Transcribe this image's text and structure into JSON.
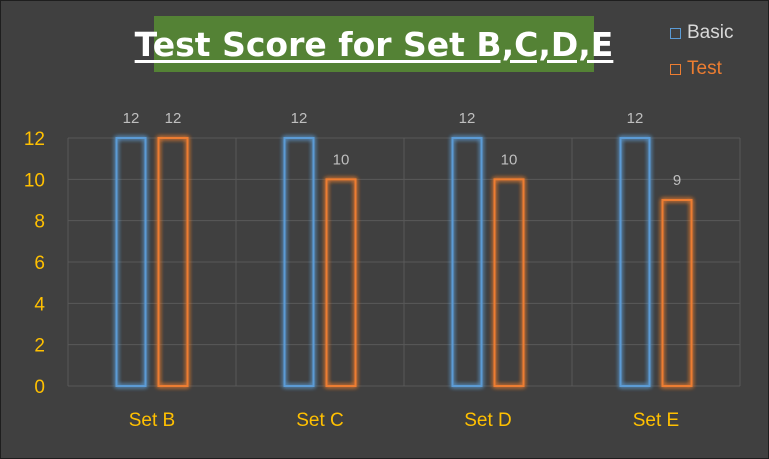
{
  "colors": {
    "background": "#404040",
    "title_bg": "#548235",
    "title_text": "#ffffff",
    "axis_text": "#ffc000",
    "grid": "#595959",
    "data_label": "#bfbfbf",
    "legend_text": "#d9d9d9"
  },
  "chart_data": {
    "type": "bar",
    "title": "Test Score for Set B,C,D,E",
    "categories": [
      "Set B",
      "Set C",
      "Set D",
      "Set E"
    ],
    "series": [
      {
        "name": "Basic",
        "color": "#5b9bd5",
        "values": [
          12,
          12,
          12,
          12
        ]
      },
      {
        "name": "Test",
        "color": "#ed7d31",
        "values": [
          12,
          10,
          10,
          9
        ]
      }
    ],
    "ylim": [
      0,
      12
    ],
    "yticks": [
      0,
      2,
      4,
      6,
      8,
      10,
      12
    ],
    "grid": true,
    "legend_position": "top-right",
    "bar_style": "outline-glow",
    "data_labels": true
  }
}
